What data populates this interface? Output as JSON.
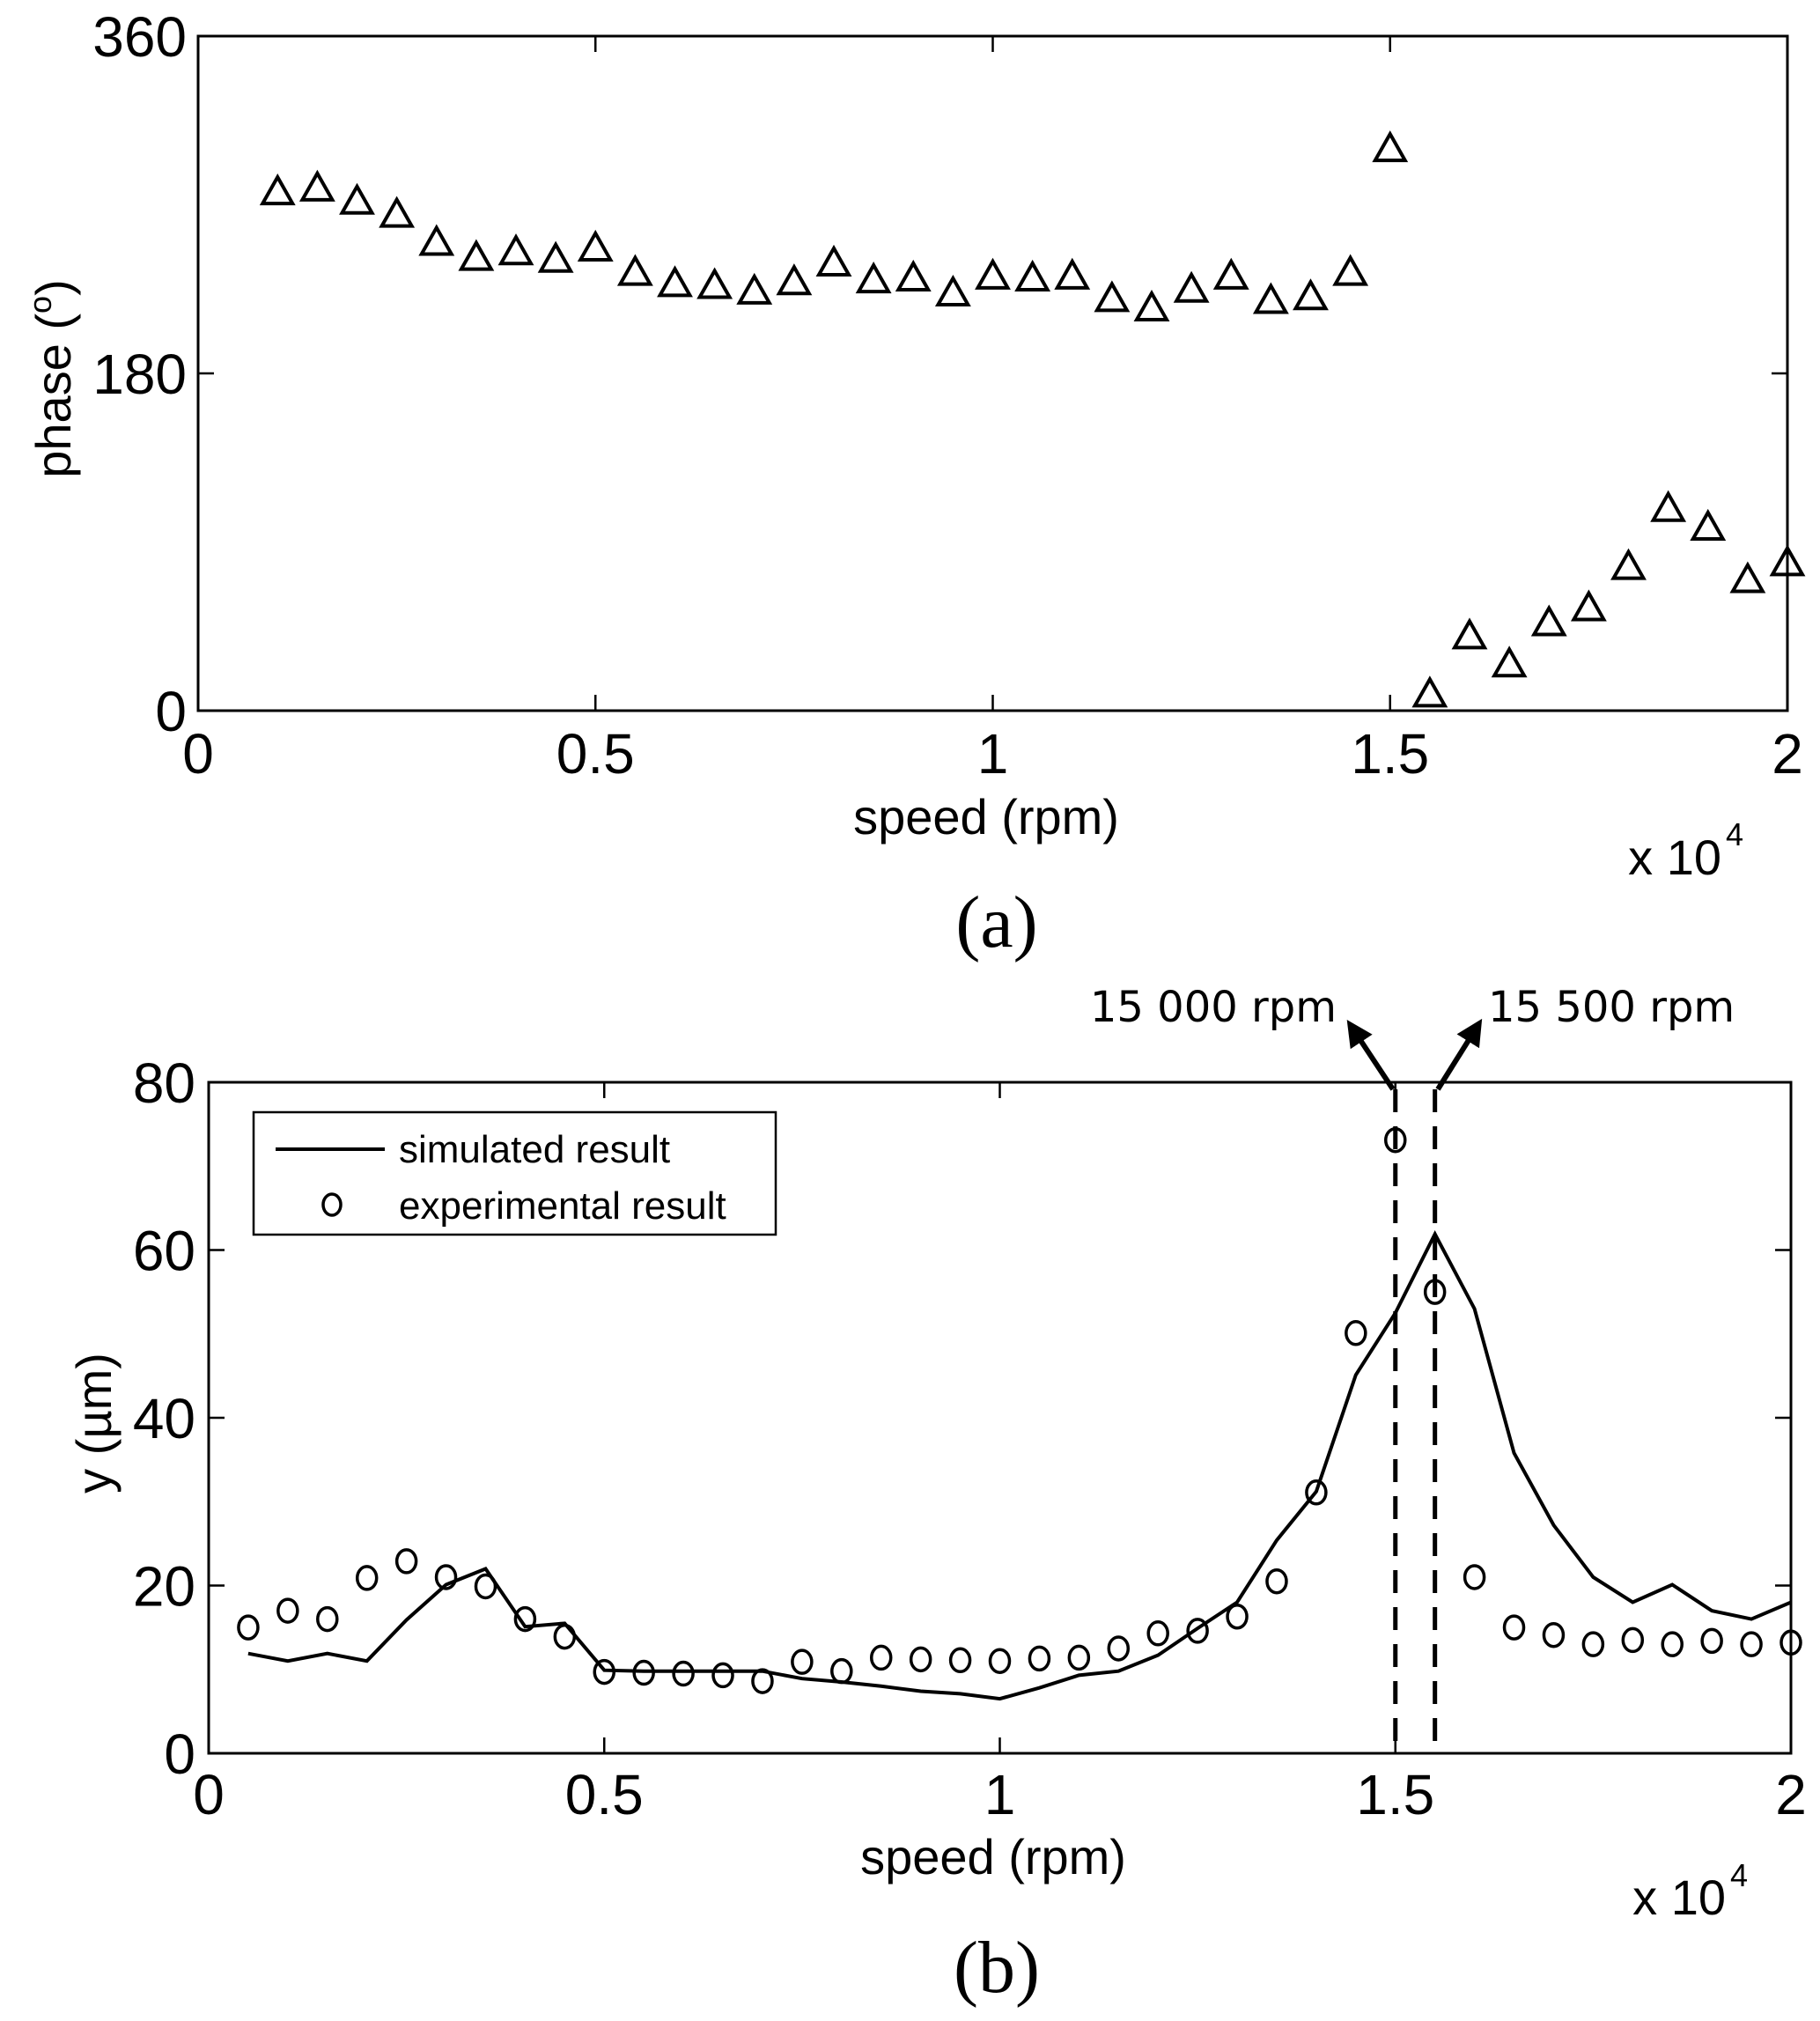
{
  "chart_data": [
    {
      "id": "a",
      "type": "scatter",
      "panel_label": "(a)",
      "title": "",
      "xlabel": "speed (rpm)",
      "ylabel": "phase (°)",
      "ylabel_main": "phase (",
      "ylabel_degree": "o",
      "ylabel_close": ")",
      "x_multiplier_label": "x 10",
      "x_multiplier_exp": "4",
      "xlim": [
        0,
        20000
      ],
      "ylim": [
        0,
        360
      ],
      "xticks": [
        0,
        5000,
        10000,
        15000,
        20000
      ],
      "xtick_labels": [
        "0",
        "0.5",
        "1",
        "1.5",
        "2"
      ],
      "yticks": [
        0,
        180,
        360
      ],
      "ytick_labels": [
        "0",
        "180",
        "360"
      ],
      "grid": false,
      "series": [
        {
          "name": "phase",
          "marker": "triangle",
          "x": [
            1000,
            1500,
            2000,
            2500,
            3000,
            3500,
            4000,
            4500,
            5000,
            5500,
            6000,
            6500,
            7000,
            7500,
            8000,
            8500,
            9000,
            9500,
            10000,
            10500,
            11000,
            11500,
            12000,
            12500,
            13000,
            13500,
            14000,
            14500,
            15000,
            15500,
            16000,
            16500,
            17000,
            17500,
            18000,
            18500,
            19000,
            19500,
            20000
          ],
          "y": [
            277,
            279,
            272,
            265,
            250,
            242,
            245,
            241,
            247,
            234,
            228,
            227,
            224,
            229,
            239,
            230,
            231,
            223,
            232,
            231,
            232,
            220,
            215,
            225,
            232,
            219,
            221,
            234,
            300,
            9,
            40,
            25,
            47,
            55,
            77,
            108,
            98,
            70,
            79
          ]
        }
      ]
    },
    {
      "id": "b",
      "type": "line",
      "panel_label": "(b)",
      "title": "",
      "xlabel": "speed (rpm)",
      "ylabel": "y (µm)",
      "x_multiplier_label": "x 10",
      "x_multiplier_exp": "4",
      "xlim": [
        0,
        20000
      ],
      "ylim": [
        0,
        80
      ],
      "xticks": [
        0,
        5000,
        10000,
        15000,
        20000
      ],
      "xtick_labels": [
        "0",
        "0.5",
        "1",
        "1.5",
        "2"
      ],
      "yticks": [
        0,
        20,
        40,
        60,
        80
      ],
      "ytick_labels": [
        "0",
        "20",
        "40",
        "60",
        "80"
      ],
      "grid": false,
      "legend_position": "top-left",
      "series": [
        {
          "name": "simulated result",
          "style": "solid-line",
          "x": [
            500,
            1000,
            1500,
            2000,
            2500,
            3000,
            3500,
            4000,
            4500,
            5000,
            5500,
            6000,
            6500,
            7000,
            7500,
            8000,
            8500,
            9000,
            9500,
            10000,
            10500,
            11000,
            11500,
            12000,
            12500,
            13000,
            13500,
            14000,
            14500,
            15000,
            15500,
            16000,
            16500,
            17000,
            17500,
            18000,
            18500,
            19000,
            19500,
            20000
          ],
          "y": [
            11.9,
            11.0,
            11.9,
            11.0,
            15.9,
            20.1,
            22.0,
            15.1,
            15.5,
            9.9,
            9.8,
            9.8,
            9.8,
            9.8,
            8.9,
            8.5,
            8.0,
            7.4,
            7.1,
            6.5,
            7.8,
            9.3,
            9.8,
            11.7,
            14.9,
            18.0,
            25.4,
            31.2,
            45.1,
            52.5,
            61.9,
            53.0,
            35.8,
            27.2,
            21.0,
            18.0,
            20.1,
            17.0,
            16.0,
            18.0
          ]
        },
        {
          "name": "experimental result",
          "style": "circle-marker",
          "x": [
            500,
            1000,
            1500,
            2000,
            2500,
            3000,
            3500,
            4000,
            4500,
            5000,
            5500,
            6000,
            6500,
            7000,
            7500,
            8000,
            8500,
            9000,
            9500,
            10000,
            10500,
            11000,
            11500,
            12000,
            12500,
            13000,
            13500,
            14000,
            14500,
            15000,
            15500,
            16000,
            16500,
            17000,
            17500,
            18000,
            18500,
            19000,
            19500,
            20000
          ],
          "y": [
            15.0,
            17.0,
            16.0,
            20.9,
            22.9,
            21.0,
            19.9,
            16.0,
            13.9,
            9.7,
            9.6,
            9.5,
            9.3,
            8.6,
            10.9,
            9.8,
            11.4,
            11.2,
            11.1,
            11.0,
            11.3,
            11.4,
            12.5,
            14.3,
            14.6,
            16.3,
            20.5,
            31.1,
            50.1,
            73.1,
            55.0,
            21.0,
            15.0,
            14.1,
            13.0,
            13.5,
            13.0,
            13.4,
            13.0,
            13.2
          ]
        }
      ],
      "annotations": [
        {
          "label": "15 000 rpm",
          "x": 15000,
          "style": "dashed-vertical-with-arrow-left"
        },
        {
          "label": "15 500 rpm",
          "x": 15500,
          "style": "dashed-vertical-with-arrow-right"
        }
      ]
    }
  ]
}
